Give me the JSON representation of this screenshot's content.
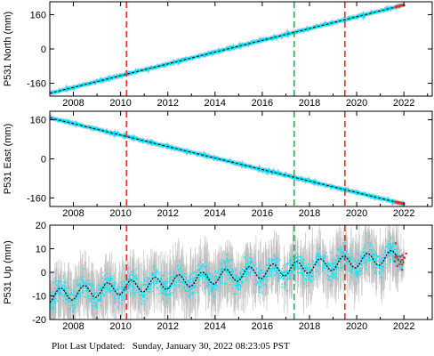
{
  "footer": {
    "label": "Plot Last Updated:",
    "value": "Sunday, January 30, 2022 08:23:05 PST"
  },
  "colors": {
    "data": "#00e5ff",
    "error_bars": "#bdbdbd",
    "model": "#000000",
    "event_red": "#e8312a",
    "event_green": "#2fa84f",
    "frame": "#000000"
  },
  "chart_data": [
    {
      "type": "scatter",
      "title": "",
      "ylabel": "P531 North (mm)",
      "xlabel": "",
      "xlim": [
        2007.0,
        2023.2
      ],
      "ylim": [
        -220,
        220
      ],
      "yticks": [
        -160,
        0,
        160
      ],
      "xticks": [
        2008,
        2010,
        2012,
        2014,
        2016,
        2018,
        2020,
        2022
      ],
      "series": [
        {
          "kind": "trend",
          "x": [
            2007.0,
            2022.0
          ],
          "y": [
            -207,
            205
          ]
        }
      ],
      "event_lines": [
        {
          "x": 2010.25,
          "color": "red"
        },
        {
          "x": 2017.35,
          "color": "green"
        },
        {
          "x": 2019.5,
          "color": "red"
        }
      ],
      "grid": false
    },
    {
      "type": "scatter",
      "title": "",
      "ylabel": "P531 East (mm)",
      "xlabel": "",
      "xlim": [
        2007.0,
        2023.2
      ],
      "ylim": [
        -195,
        195
      ],
      "yticks": [
        -160,
        0,
        160
      ],
      "xticks": [
        2008,
        2010,
        2012,
        2014,
        2016,
        2018,
        2020,
        2022
      ],
      "series": [
        {
          "kind": "trend",
          "x": [
            2007.0,
            2022.0
          ],
          "y": [
            168,
            -185
          ]
        }
      ],
      "event_lines": [
        {
          "x": 2010.25,
          "color": "red"
        },
        {
          "x": 2017.35,
          "color": "green"
        },
        {
          "x": 2019.5,
          "color": "red"
        }
      ],
      "grid": false
    },
    {
      "type": "scatter",
      "title": "",
      "ylabel": "P531 Up (mm)",
      "xlabel": "",
      "xlim": [
        2007.0,
        2023.2
      ],
      "ylim": [
        -20,
        20
      ],
      "yticks": [
        -20,
        -10,
        0,
        10,
        20
      ],
      "xticks": [
        2008,
        2010,
        2012,
        2014,
        2016,
        2018,
        2020,
        2022
      ],
      "series": [
        {
          "kind": "seasonal-trend",
          "start": [
            2007.0,
            -10
          ],
          "end": [
            2022.0,
            7
          ],
          "annual_amplitude": 2.8,
          "noise_spread": 5
        }
      ],
      "event_lines": [
        {
          "x": 2010.25,
          "color": "red"
        },
        {
          "x": 2017.35,
          "color": "green"
        },
        {
          "x": 2019.5,
          "color": "red"
        }
      ],
      "grid": false
    }
  ]
}
